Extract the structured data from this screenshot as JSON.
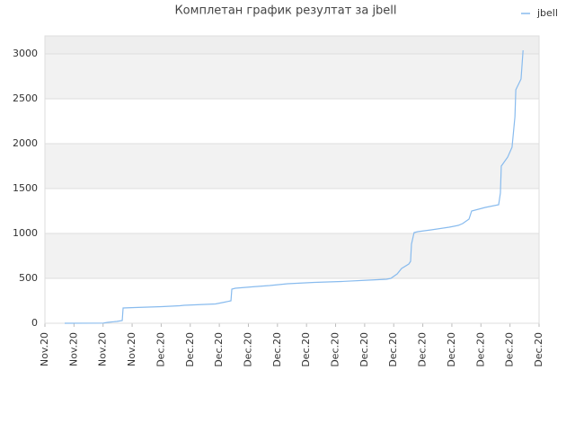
{
  "chart_data": {
    "type": "line",
    "title": "Комплетан график резултат за jbell",
    "x": [
      0.68,
      2.01,
      2.16,
      2.47,
      2.66,
      2.69,
      3.09,
      4.02,
      4.64,
      4.79,
      5.87,
      6.18,
      6.4,
      6.43,
      6.55,
      7.11,
      7.73,
      8.35,
      9.27,
      10.2,
      11.13,
      11.75,
      11.9,
      12.12,
      12.27,
      12.52,
      12.58,
      12.61,
      12.7,
      12.83,
      13.29,
      13.91,
      14.22,
      14.37,
      14.59,
      14.68,
      15.15,
      15.61,
      15.67,
      15.7,
      15.92,
      16.07,
      16.17,
      16.2,
      16.38,
      16.45
    ],
    "series": [
      {
        "name": "jbell",
        "color": "#88bbee",
        "values": [
          0,
          2,
          10,
          20,
          30,
          170,
          175,
          185,
          195,
          200,
          215,
          235,
          250,
          380,
          390,
          405,
          420,
          440,
          455,
          465,
          480,
          490,
          500,
          550,
          610,
          660,
          690,
          880,
          1010,
          1020,
          1040,
          1070,
          1090,
          1110,
          1160,
          1250,
          1290,
          1320,
          1450,
          1750,
          1850,
          1960,
          2300,
          2600,
          2720,
          3040
        ]
      }
    ],
    "xlim": [
      0,
      17
    ],
    "xticks": [
      {
        "value": 0,
        "label": "Nov.20"
      },
      {
        "value": 1,
        "label": "Nov.20"
      },
      {
        "value": 2,
        "label": "Nov.20"
      },
      {
        "value": 3,
        "label": "Nov.20"
      },
      {
        "value": 4,
        "label": "Dec.20"
      },
      {
        "value": 5,
        "label": "Dec.20"
      },
      {
        "value": 6,
        "label": "Dec.20"
      },
      {
        "value": 7,
        "label": "Dec.20"
      },
      {
        "value": 8,
        "label": "Dec.20"
      },
      {
        "value": 9,
        "label": "Dec.20"
      },
      {
        "value": 10,
        "label": "Dec.20"
      },
      {
        "value": 11,
        "label": "Dec.20"
      },
      {
        "value": 12,
        "label": "Dec.20"
      },
      {
        "value": 13,
        "label": "Dec.20"
      },
      {
        "value": 14,
        "label": "Dec.20"
      },
      {
        "value": 15,
        "label": "Dec.20"
      },
      {
        "value": 16,
        "label": "Dec.20"
      },
      {
        "value": 17,
        "label": "Dec.20"
      }
    ],
    "ylim": [
      0,
      3200
    ],
    "yticks": [
      0,
      500,
      1000,
      1500,
      2000,
      2500,
      3000
    ],
    "grid": true,
    "legend": "top-right"
  }
}
